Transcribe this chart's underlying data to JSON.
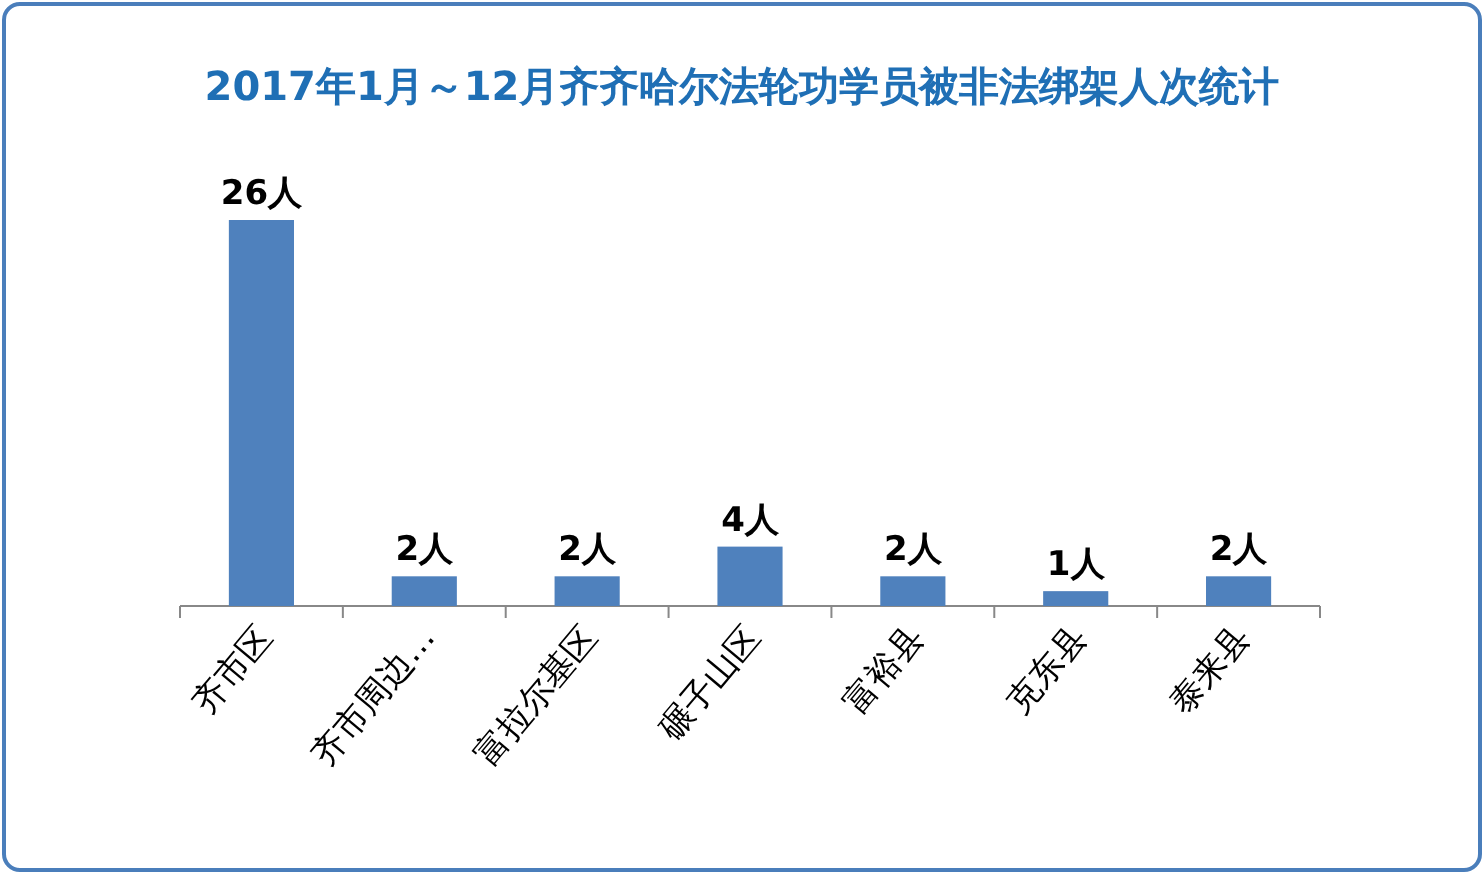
{
  "chart_data": {
    "type": "bar",
    "title": "2017年1月～12月齐齐哈尔法轮功学员被非法绑架人次统计",
    "categories": [
      "齐市区",
      "齐市周边…",
      "富拉尔基区",
      "碾子山区",
      "富裕县",
      "克东县",
      "泰来县"
    ],
    "values": [
      26,
      2,
      2,
      4,
      2,
      1,
      2
    ],
    "value_labels": [
      "26人",
      "2人",
      "2人",
      "4人",
      "2人",
      "1人",
      "2人"
    ],
    "color": "#4f81bd"
  }
}
